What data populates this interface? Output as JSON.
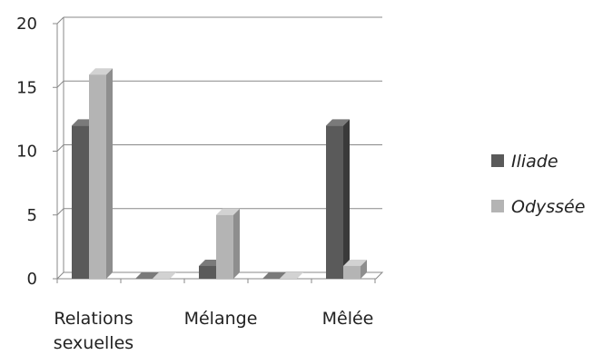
{
  "chart_data": {
    "type": "bar",
    "style": "3d-clustered-column",
    "categories": [
      [
        "Relations",
        "sexuelles"
      ],
      [
        "",
        ""
      ],
      [
        "Mélange",
        ""
      ],
      [
        "",
        ""
      ],
      [
        "Mêlée",
        ""
      ]
    ],
    "series": [
      {
        "name": "Iliade",
        "values": [
          12,
          0,
          1,
          0,
          12
        ],
        "color": "#5a5a5a",
        "side_color": "#3a3a3a",
        "top_color": "#7a7a7a"
      },
      {
        "name": "Odyssée",
        "values": [
          16,
          0,
          5,
          0,
          1
        ],
        "color": "#b4b4b4",
        "side_color": "#8e8e8e",
        "top_color": "#d2d2d2"
      }
    ],
    "y_ticks": [
      "0",
      "5",
      "10",
      "15",
      "20"
    ],
    "ylim": [
      0,
      20
    ],
    "grid": true,
    "legend_position": "right"
  }
}
